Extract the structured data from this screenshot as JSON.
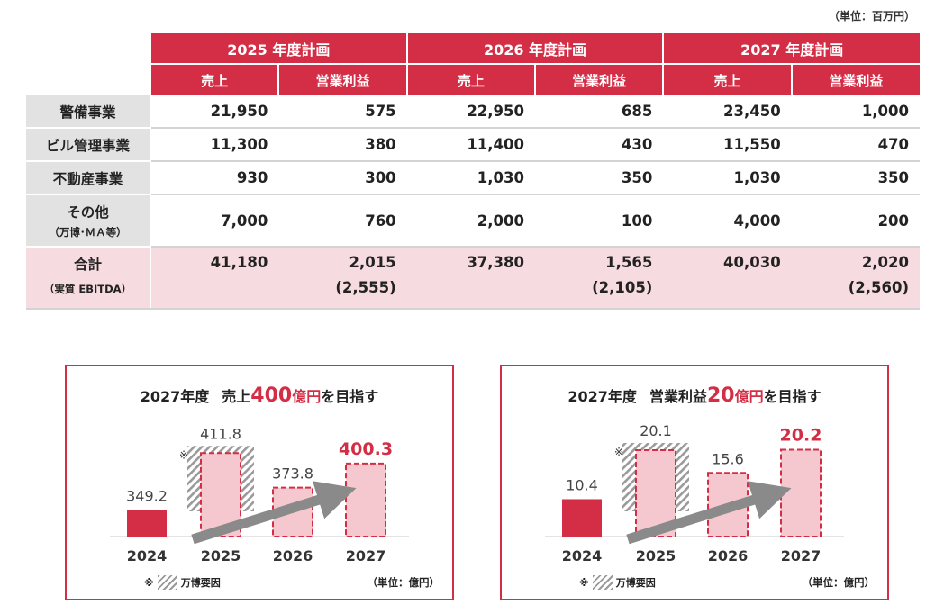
{
  "unit_top": "（単位：百万円）",
  "table": {
    "years": [
      "2025 年度計画",
      "2026 年度計画",
      "2027 年度計画"
    ],
    "sub_headers": [
      "売上",
      "営業利益"
    ],
    "rows": [
      {
        "label": "警備事業",
        "values": [
          "21,950",
          "575",
          "22,950",
          "685",
          "23,450",
          "1,000"
        ]
      },
      {
        "label": "ビル管理事業",
        "values": [
          "11,300",
          "380",
          "11,400",
          "430",
          "11,550",
          "470"
        ]
      },
      {
        "label": "不動産事業",
        "values": [
          "930",
          "300",
          "1,030",
          "350",
          "1,030",
          "350"
        ]
      },
      {
        "label": "その他",
        "sublabel": "（万博･ＭＡ等）",
        "values": [
          "7,000",
          "760",
          "2,000",
          "100",
          "4,000",
          "200"
        ]
      }
    ],
    "total": {
      "label": "合計",
      "sublabel": "（実質 EBITDA）",
      "values": [
        "41,180",
        "2,015",
        "37,380",
        "1,565",
        "40,030",
        "2,020"
      ],
      "ebitda": [
        "(2,555)",
        "(2,105)",
        "(2,560)"
      ]
    }
  },
  "colors": {
    "accent": "#d42e46",
    "light": "#f5c8d0",
    "gray_label": "#e2e2e2",
    "arrow": "#8a8a8a"
  },
  "panels": [
    {
      "title_pre": "2027年度",
      "title_mid": "売上",
      "title_big": "400",
      "title_red": "億円",
      "title_post": "を目指す",
      "legend_mark": "※",
      "legend_label": "万博要因",
      "unit": "（単位：億円）"
    },
    {
      "title_pre": "2027年度",
      "title_mid": "営業利益",
      "title_big": "20",
      "title_red": "億円",
      "title_post": "を目指す",
      "legend_mark": "※",
      "legend_label": "万博要因",
      "unit": "（単位：億円）"
    }
  ],
  "chart_data": [
    {
      "type": "bar",
      "title": "2027年度 売上400億円を目指す",
      "categories": [
        "2024",
        "2025",
        "2026",
        "2027"
      ],
      "values": [
        349.2,
        411.8,
        373.8,
        400.3
      ],
      "labels": [
        "349.2",
        "411.8",
        "373.8",
        "400.3"
      ],
      "styles": [
        "actual",
        "expo",
        "plan",
        "target"
      ],
      "note_mark": "※",
      "ylim": [
        320,
        420
      ],
      "ylabel": "億円"
    },
    {
      "type": "bar",
      "title": "2027年度 営業利益20億円を目指す",
      "categories": [
        "2024",
        "2025",
        "2026",
        "2027"
      ],
      "values": [
        10.4,
        20.1,
        15.6,
        20.2
      ],
      "labels": [
        "10.4",
        "20.1",
        "15.6",
        "20.2"
      ],
      "styles": [
        "actual",
        "expo",
        "plan",
        "target"
      ],
      "note_mark": "※",
      "ylim": [
        3,
        21
      ],
      "ylabel": "億円"
    }
  ]
}
